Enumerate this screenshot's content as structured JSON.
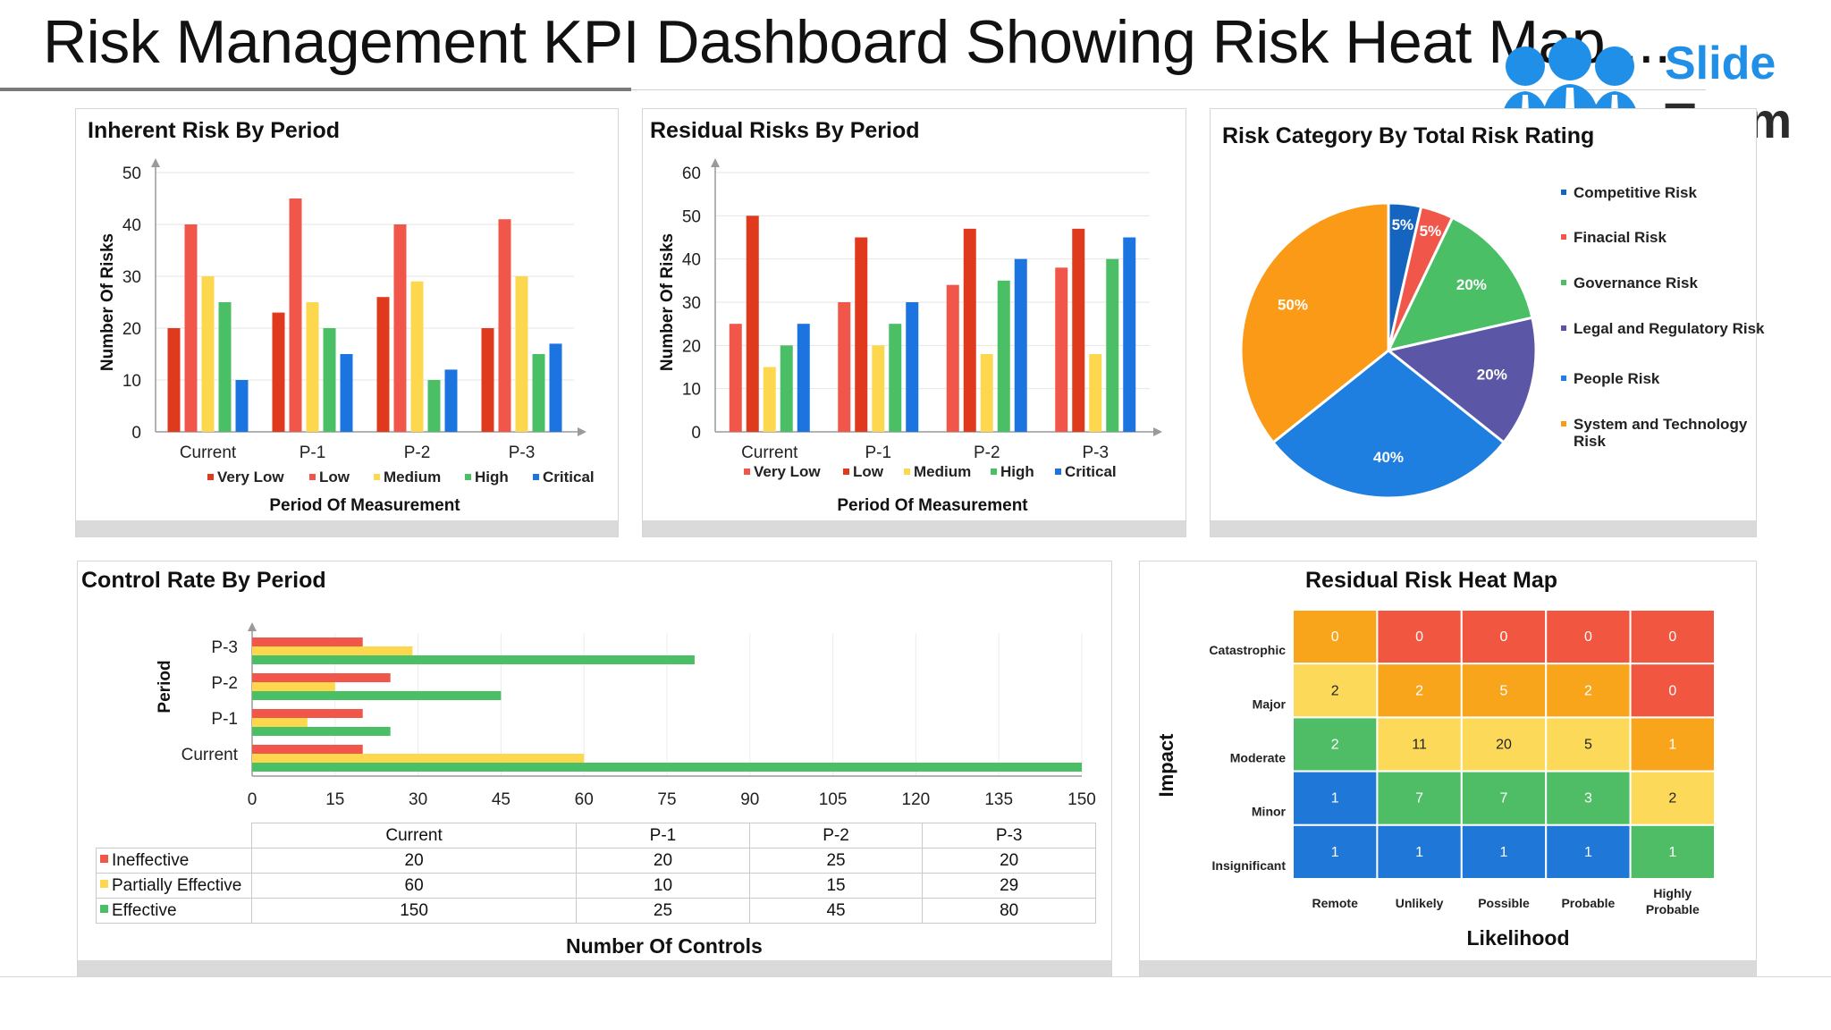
{
  "page": {
    "title": "Risk Management KPI Dashboard Showing Risk Heat Map ..."
  },
  "logo": {
    "line1": "Slide",
    "line2": "Team",
    "color_primary": "#1f8fe8",
    "color_text": "#2b2b2b"
  },
  "colors": {
    "very_low": "#e03a1e",
    "low": "#f0564a",
    "medium": "#fdd84e",
    "high": "#4bbf66",
    "critical": "#1b74df",
    "heat_red": "#f05640",
    "heat_orange": "#f9a51b",
    "heat_yellow": "#fdd95a",
    "heat_green": "#4ebd66",
    "heat_blue": "#1f78d8"
  },
  "chart_data": [
    {
      "id": "inherent",
      "type": "bar",
      "title": "Inherent Risk By Period",
      "xlabel": "Period Of Measurement",
      "ylabel": "Number Of Risks",
      "categories": [
        "Current",
        "P-1",
        "P-2",
        "P-3"
      ],
      "ylim": [
        0,
        50
      ],
      "yticks": [
        0,
        10,
        20,
        30,
        40,
        50
      ],
      "series": [
        {
          "name": "Very Low",
          "color": "#e03a1e",
          "values": [
            20,
            23,
            26,
            20
          ]
        },
        {
          "name": "Low",
          "color": "#f0564a",
          "values": [
            40,
            45,
            40,
            41
          ]
        },
        {
          "name": "Medium",
          "color": "#fdd84e",
          "values": [
            30,
            25,
            29,
            30
          ]
        },
        {
          "name": "High",
          "color": "#4bbf66",
          "values": [
            25,
            20,
            10,
            15
          ]
        },
        {
          "name": "Critical",
          "color": "#1b74df",
          "values": [
            10,
            15,
            12,
            17
          ]
        }
      ]
    },
    {
      "id": "residual",
      "type": "bar",
      "title": "Residual Risks By Period",
      "xlabel": "Period Of Measurement",
      "ylabel": "Number Of Risks",
      "categories": [
        "Current",
        "P-1",
        "P-2",
        "P-3"
      ],
      "ylim": [
        0,
        60
      ],
      "yticks": [
        0,
        10,
        20,
        30,
        40,
        50,
        60
      ],
      "series": [
        {
          "name": "Very Low",
          "color": "#f0564a",
          "values": [
            25,
            30,
            34,
            38
          ]
        },
        {
          "name": "Low",
          "color": "#e03a1e",
          "values": [
            50,
            45,
            47,
            47
          ]
        },
        {
          "name": "Medium",
          "color": "#fdd84e",
          "values": [
            15,
            20,
            18,
            18
          ]
        },
        {
          "name": "High",
          "color": "#4bbf66",
          "values": [
            20,
            25,
            35,
            40
          ]
        },
        {
          "name": "Critical",
          "color": "#1b74df",
          "values": [
            25,
            30,
            40,
            45
          ]
        }
      ]
    },
    {
      "id": "category",
      "type": "pie",
      "title": "Risk Category By Total Risk Rating",
      "slices": [
        {
          "name": "Competitive Risk",
          "value": 5,
          "label": "5%",
          "color": "#1565c0"
        },
        {
          "name": "Finacial Risk",
          "value": 5,
          "label": "5%",
          "color": "#f0564a"
        },
        {
          "name": "Governance Risk",
          "value": 20,
          "label": "20%",
          "color": "#4bbf66"
        },
        {
          "name": "Legal and Regulatory Risk",
          "value": 20,
          "label": "20%",
          "color": "#5b57a6"
        },
        {
          "name": "People Risk",
          "value": 40,
          "label": "40%",
          "color": "#1e7fe0"
        },
        {
          "name": "System and Technology Risk",
          "value": 50,
          "label": "50%",
          "color": "#fb9a16"
        }
      ]
    },
    {
      "id": "control",
      "type": "bar",
      "orientation": "horizontal",
      "title": "Control Rate By Period",
      "xlabel": "Number Of Controls",
      "ylabel": "Period",
      "categories": [
        "Current",
        "P-1",
        "P-2",
        "P-3"
      ],
      "xlim": [
        0,
        150
      ],
      "xticks": [
        0,
        15,
        30,
        45,
        60,
        75,
        90,
        105,
        120,
        135,
        150
      ],
      "series": [
        {
          "name": "Ineffective",
          "color": "#f0564a",
          "values": [
            20,
            20,
            25,
            20
          ]
        },
        {
          "name": "Partially Effective",
          "color": "#fdd84e",
          "values": [
            60,
            10,
            15,
            29
          ]
        },
        {
          "name": "Effective",
          "color": "#4bbf66",
          "values": [
            150,
            25,
            45,
            80
          ]
        }
      ]
    },
    {
      "id": "heatmap",
      "type": "heatmap",
      "title": "Residual Risk Heat Map",
      "xlabel": "Likelihood",
      "ylabel": "Impact",
      "x_categories": [
        "Remote",
        "Unlikely",
        "Possible",
        "Probable",
        "Highly Probable"
      ],
      "y_categories": [
        "Catastrophic",
        "Major",
        "Moderate",
        "Minor",
        "Insignificant"
      ],
      "values": [
        [
          0,
          0,
          0,
          0,
          0
        ],
        [
          2,
          2,
          5,
          2,
          0
        ],
        [
          2,
          11,
          20,
          5,
          1
        ],
        [
          1,
          7,
          7,
          3,
          2
        ],
        [
          1,
          1,
          1,
          1,
          1
        ]
      ],
      "cell_colors": [
        [
          "#f9a51b",
          "#f05640",
          "#f05640",
          "#f05640",
          "#f05640"
        ],
        [
          "#fdd95a",
          "#f9a51b",
          "#f9a51b",
          "#f9a51b",
          "#f05640"
        ],
        [
          "#4ebd66",
          "#fdd95a",
          "#fdd95a",
          "#fdd95a",
          "#f9a51b"
        ],
        [
          "#1f78d8",
          "#4ebd66",
          "#4ebd66",
          "#4ebd66",
          "#fdd95a"
        ],
        [
          "#1f78d8",
          "#1f78d8",
          "#1f78d8",
          "#1f78d8",
          "#4ebd66"
        ]
      ]
    }
  ],
  "control_table": {
    "columns": [
      "Current",
      "P-1",
      "P-2",
      "P-3"
    ],
    "rows": [
      {
        "label": "Ineffective",
        "color": "#f0564a",
        "values": [
          "20",
          "20",
          "25",
          "20"
        ]
      },
      {
        "label": "Partially Effective",
        "color": "#fdd84e",
        "values": [
          "60",
          "10",
          "15",
          "29"
        ]
      },
      {
        "label": "Effective",
        "color": "#4bbf66",
        "values": [
          "150",
          "25",
          "45",
          "80"
        ]
      }
    ]
  }
}
